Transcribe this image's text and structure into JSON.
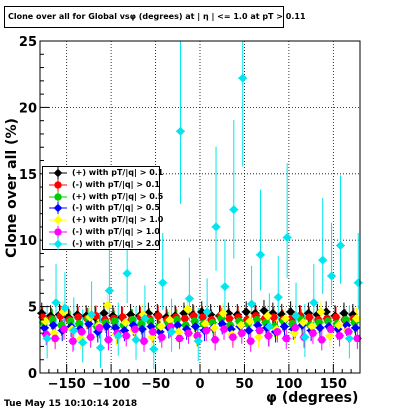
{
  "title": "Clone  over all for Global vsφ (degrees) at | η | <= 1.0 at pT > 0.11",
  "timestamp": "Tue May 15 10:10:14 2018",
  "chart_data": {
    "type": "scatter",
    "title": "Clone  over all for Global vsφ (degrees) at | η | <= 1.0 at pT > 0.11",
    "xlabel": "φ (degrees)",
    "ylabel": "Clone  over all (%)",
    "xlim": [
      -180,
      180
    ],
    "ylim": [
      0,
      25
    ],
    "x_ticks": [
      -150,
      -100,
      -50,
      0,
      50,
      100,
      150
    ],
    "y_ticks": [
      0,
      5,
      10,
      15,
      20,
      25
    ],
    "grid": true,
    "legend_position": "middle-left",
    "series": [
      {
        "name": "(+) with pT/|q| > 0.1",
        "color": "#000000",
        "marker": "diamond",
        "x": [
          -175,
          -165,
          -155,
          -145,
          -135,
          -125,
          -115,
          -105,
          -95,
          -85,
          -75,
          -65,
          -55,
          -45,
          -35,
          -25,
          -15,
          -5,
          5,
          15,
          25,
          35,
          45,
          55,
          65,
          75,
          85,
          95,
          105,
          115,
          125,
          135,
          145,
          155,
          165,
          175
        ],
        "y": [
          4.5,
          4.3,
          4.4,
          4.2,
          4.4,
          4.3,
          4.2,
          4.5,
          4.3,
          4.2,
          4.4,
          4.3,
          4.5,
          4.4,
          4.2,
          4.3,
          4.5,
          4.4,
          4.6,
          4.4,
          4.3,
          4.5,
          4.4,
          4.6,
          4.5,
          4.7,
          4.5,
          4.4,
          4.6,
          4.3,
          4.5,
          4.4,
          4.6,
          4.3,
          4.5,
          4.4
        ]
      },
      {
        "name": "(-) with pT/|q| > 0.1",
        "color": "#ff0000",
        "marker": "circle",
        "x": [
          -175,
          -165,
          -155,
          -145,
          -135,
          -125,
          -115,
          -105,
          -95,
          -85,
          -75,
          -65,
          -55,
          -45,
          -35,
          -25,
          -15,
          -5,
          5,
          15,
          25,
          35,
          45,
          55,
          65,
          75,
          85,
          95,
          105,
          115,
          125,
          135,
          145,
          155,
          165,
          175
        ],
        "y": [
          4.2,
          4.1,
          4.3,
          4.0,
          4.2,
          4.1,
          4.3,
          4.0,
          4.1,
          4.2,
          4.0,
          4.2,
          4.1,
          4.3,
          4.0,
          4.2,
          4.1,
          4.3,
          4.2,
          4.0,
          4.3,
          4.1,
          4.2,
          4.0,
          4.3,
          4.1,
          4.2,
          4.0,
          4.1,
          4.3,
          4.2,
          4.0,
          4.1,
          4.2,
          4.0,
          4.1
        ]
      },
      {
        "name": "(+) with pT/|q| > 0.5",
        "color": "#00cc00",
        "marker": "circle",
        "x": [
          -175,
          -165,
          -155,
          -145,
          -135,
          -125,
          -115,
          -105,
          -95,
          -85,
          -75,
          -65,
          -55,
          -45,
          -35,
          -25,
          -15,
          -5,
          5,
          15,
          25,
          35,
          45,
          55,
          65,
          75,
          85,
          95,
          105,
          115,
          125,
          135,
          145,
          155,
          165,
          175
        ],
        "y": [
          3.8,
          4.0,
          3.6,
          3.9,
          3.7,
          4.1,
          3.5,
          3.8,
          3.9,
          3.6,
          4.0,
          3.7,
          3.9,
          3.5,
          3.8,
          4.0,
          3.6,
          3.9,
          3.7,
          3.8,
          4.1,
          3.6,
          3.9,
          3.7,
          4.0,
          3.8,
          3.5,
          3.9,
          3.7,
          4.0,
          3.6,
          3.8,
          3.9,
          3.7,
          4.0,
          3.8
        ]
      },
      {
        "name": "(-) with pT/|q| > 0.5",
        "color": "#0000ff",
        "marker": "diamond",
        "x": [
          -175,
          -165,
          -155,
          -145,
          -135,
          -125,
          -115,
          -105,
          -95,
          -85,
          -75,
          -65,
          -55,
          -45,
          -35,
          -25,
          -15,
          -5,
          5,
          15,
          25,
          35,
          45,
          55,
          65,
          75,
          85,
          95,
          105,
          115,
          125,
          135,
          145,
          155,
          165,
          175
        ],
        "y": [
          3.4,
          3.6,
          3.2,
          3.5,
          3.3,
          3.7,
          3.1,
          3.5,
          3.4,
          3.2,
          3.6,
          3.3,
          3.5,
          3.1,
          3.4,
          3.6,
          3.3,
          3.5,
          3.2,
          3.4,
          3.7,
          3.3,
          3.5,
          3.2,
          3.6,
          3.4,
          3.1,
          3.5,
          3.3,
          3.6,
          3.2,
          3.4,
          3.5,
          3.3,
          3.6,
          3.4
        ]
      },
      {
        "name": "(+) with pT/|q| > 1.0",
        "color": "#ffff00",
        "marker": "diamond",
        "x": [
          -175,
          -165,
          -155,
          -145,
          -135,
          -125,
          -115,
          -105,
          -95,
          -85,
          -75,
          -65,
          -55,
          -45,
          -35,
          -25,
          -15,
          -5,
          5,
          15,
          25,
          35,
          45,
          55,
          65,
          75,
          85,
          95,
          105,
          115,
          125,
          135,
          145,
          155,
          165,
          175
        ],
        "y": [
          3.9,
          3.0,
          4.6,
          3.3,
          2.6,
          4.2,
          3.6,
          5.1,
          2.9,
          3.8,
          3.2,
          4.4,
          2.7,
          3.5,
          4.0,
          3.1,
          4.8,
          2.8,
          3.7,
          3.4,
          4.5,
          2.9,
          3.6,
          3.9,
          2.7,
          4.3,
          3.3,
          4.1,
          3.0,
          3.8,
          3.5,
          4.6,
          2.8,
          3.6,
          3.2,
          4.1
        ]
      },
      {
        "name": "(-) with pT/|q| > 1.0",
        "color": "#ff00ff",
        "marker": "circle",
        "x": [
          -175,
          -165,
          -155,
          -145,
          -135,
          -125,
          -115,
          -105,
          -95,
          -85,
          -75,
          -65,
          -55,
          -45,
          -35,
          -25,
          -15,
          -5,
          5,
          15,
          25,
          35,
          45,
          55,
          65,
          75,
          85,
          95,
          105,
          115,
          125,
          135,
          145,
          155,
          165,
          175
        ],
        "y": [
          2.9,
          2.6,
          3.3,
          2.4,
          3.1,
          2.7,
          3.4,
          2.5,
          3.0,
          2.8,
          3.3,
          2.4,
          3.1,
          2.7,
          3.5,
          2.6,
          3.0,
          2.8,
          3.2,
          2.5,
          3.3,
          2.7,
          3.0,
          2.4,
          3.2,
          2.8,
          3.1,
          2.6,
          3.4,
          2.7,
          3.0,
          2.5,
          3.3,
          2.8,
          3.1,
          2.6
        ]
      },
      {
        "name": "(-) with pT/|q| > 2.0",
        "color": "#00e5ee",
        "marker": "diamond",
        "x": [
          -175,
          -165,
          -155,
          -145,
          -135,
          -125,
          -115,
          -105,
          -95,
          -85,
          -75,
          -65,
          -55,
          -45,
          -35,
          -25,
          -15,
          -5,
          5,
          15,
          25,
          35,
          45,
          55,
          65,
          75,
          85,
          95,
          105,
          115,
          125,
          135,
          145,
          155,
          165,
          175
        ],
        "y": [
          2.6,
          5.3,
          4.9,
          3.2,
          2.3,
          4.4,
          1.9,
          6.2,
          2.8,
          7.5,
          2.5,
          4.1,
          1.8,
          6.8,
          3.1,
          18.2,
          5.6,
          2.4,
          4.6,
          11.0,
          6.5,
          12.3,
          22.2,
          5.2,
          8.9,
          3.5,
          5.7,
          10.2,
          4.3,
          2.7,
          5.3,
          8.5,
          7.3,
          9.6,
          2.6,
          6.8
        ]
      }
    ]
  }
}
